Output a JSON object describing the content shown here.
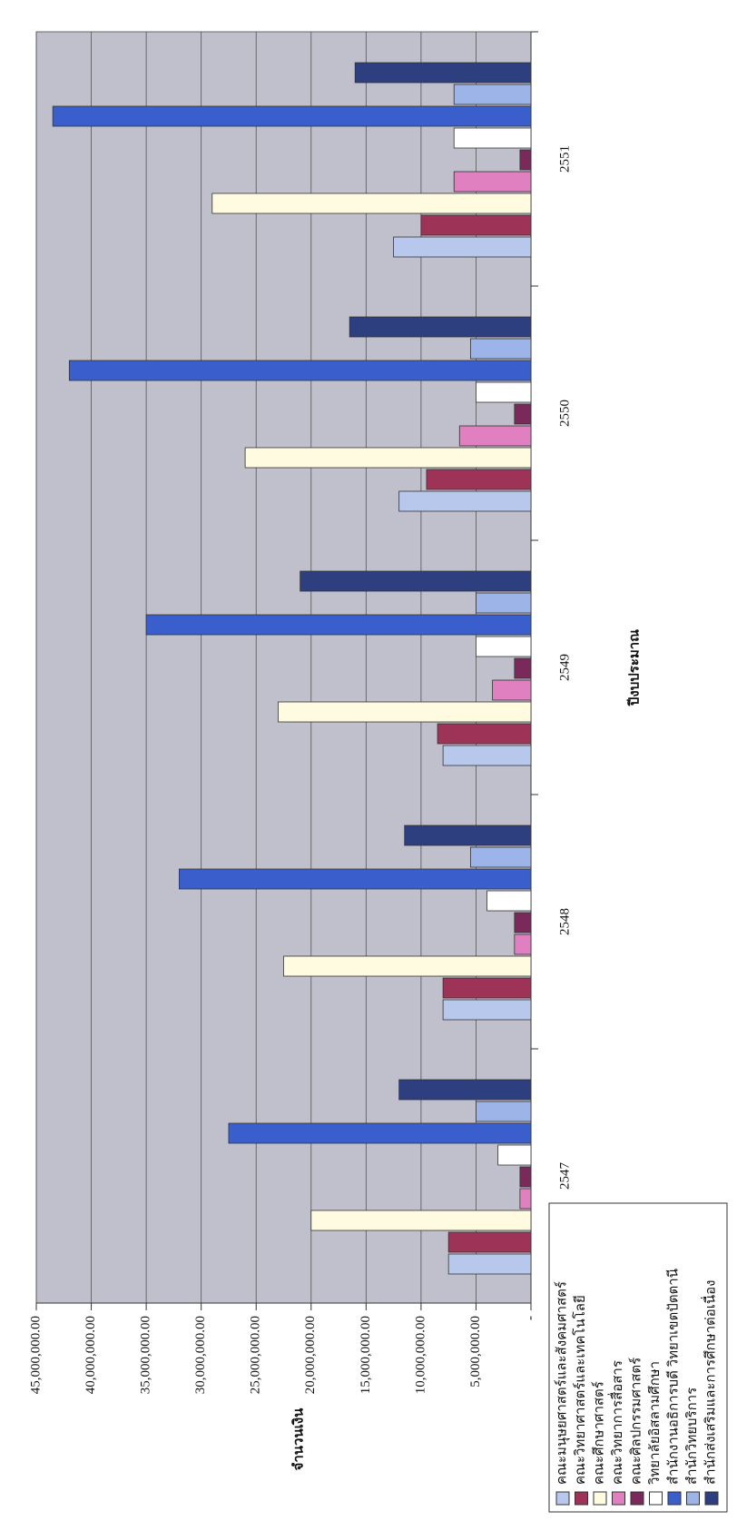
{
  "chart_data": {
    "type": "bar",
    "y_label": "จำนวนเงิน",
    "x_label": "ปีงบประมาณ",
    "categories": [
      "2547",
      "2548",
      "2549",
      "2550",
      "2551"
    ],
    "ylim": [
      0,
      45000000
    ],
    "yticks": [
      {
        "value": 0,
        "label": "-"
      },
      {
        "value": 5000000,
        "label": "5,000,000.00"
      },
      {
        "value": 10000000,
        "label": "10,000,000.00"
      },
      {
        "value": 15000000,
        "label": "15,000,000.00"
      },
      {
        "value": 20000000,
        "label": "20,000,000.00"
      },
      {
        "value": 25000000,
        "label": "25,000,000.00"
      },
      {
        "value": 30000000,
        "label": "30,000,000.00"
      },
      {
        "value": 35000000,
        "label": "35,000,000.00"
      },
      {
        "value": 40000000,
        "label": "40,000,000.00"
      },
      {
        "value": 45000000,
        "label": "45,000,000.00"
      }
    ],
    "grid": true,
    "series": [
      {
        "name": "คณะมนุษยศาสตร์และสังคมศาสตร์",
        "color": "#b8c8ec",
        "values": [
          7500000,
          8000000,
          8000000,
          12000000,
          12500000
        ]
      },
      {
        "name": "คณะวิทยาศาสตร์และเทคโนโลยี",
        "color": "#9e3358",
        "values": [
          7500000,
          8000000,
          8500000,
          9500000,
          10000000
        ]
      },
      {
        "name": "คณะศึกษาศาสตร์",
        "color": "#fffbe0",
        "values": [
          20000000,
          22500000,
          23000000,
          26000000,
          29000000
        ]
      },
      {
        "name": "คณะวิทยาการสื่อสาร",
        "color": "#e080c0",
        "values": [
          1000000,
          1500000,
          3500000,
          6500000,
          7000000
        ]
      },
      {
        "name": "คณะศิลปกรรมศาสตร์",
        "color": "#7a2a5a",
        "values": [
          1000000,
          1500000,
          1500000,
          1500000,
          1000000
        ]
      },
      {
        "name": "วิทยาลัยอิสลามศึกษา",
        "color": "#ffffff",
        "values": [
          3000000,
          4000000,
          5000000,
          5000000,
          7000000
        ]
      },
      {
        "name": "สำนักงานอธิการบดี วิทยาเขตปัตตานี",
        "color": "#3a5fcd",
        "values": [
          27500000,
          32000000,
          35000000,
          42000000,
          43500000
        ]
      },
      {
        "name": "สำนักวิทยบริการ",
        "color": "#9cb4e8",
        "values": [
          5000000,
          5500000,
          5000000,
          5500000,
          7000000
        ]
      },
      {
        "name": "สำนักส่งเสริมและการศึกษาต่อเนื่อง",
        "color": "#2e3f7f",
        "values": [
          12000000,
          11500000,
          21000000,
          16500000,
          16000000
        ]
      }
    ]
  }
}
